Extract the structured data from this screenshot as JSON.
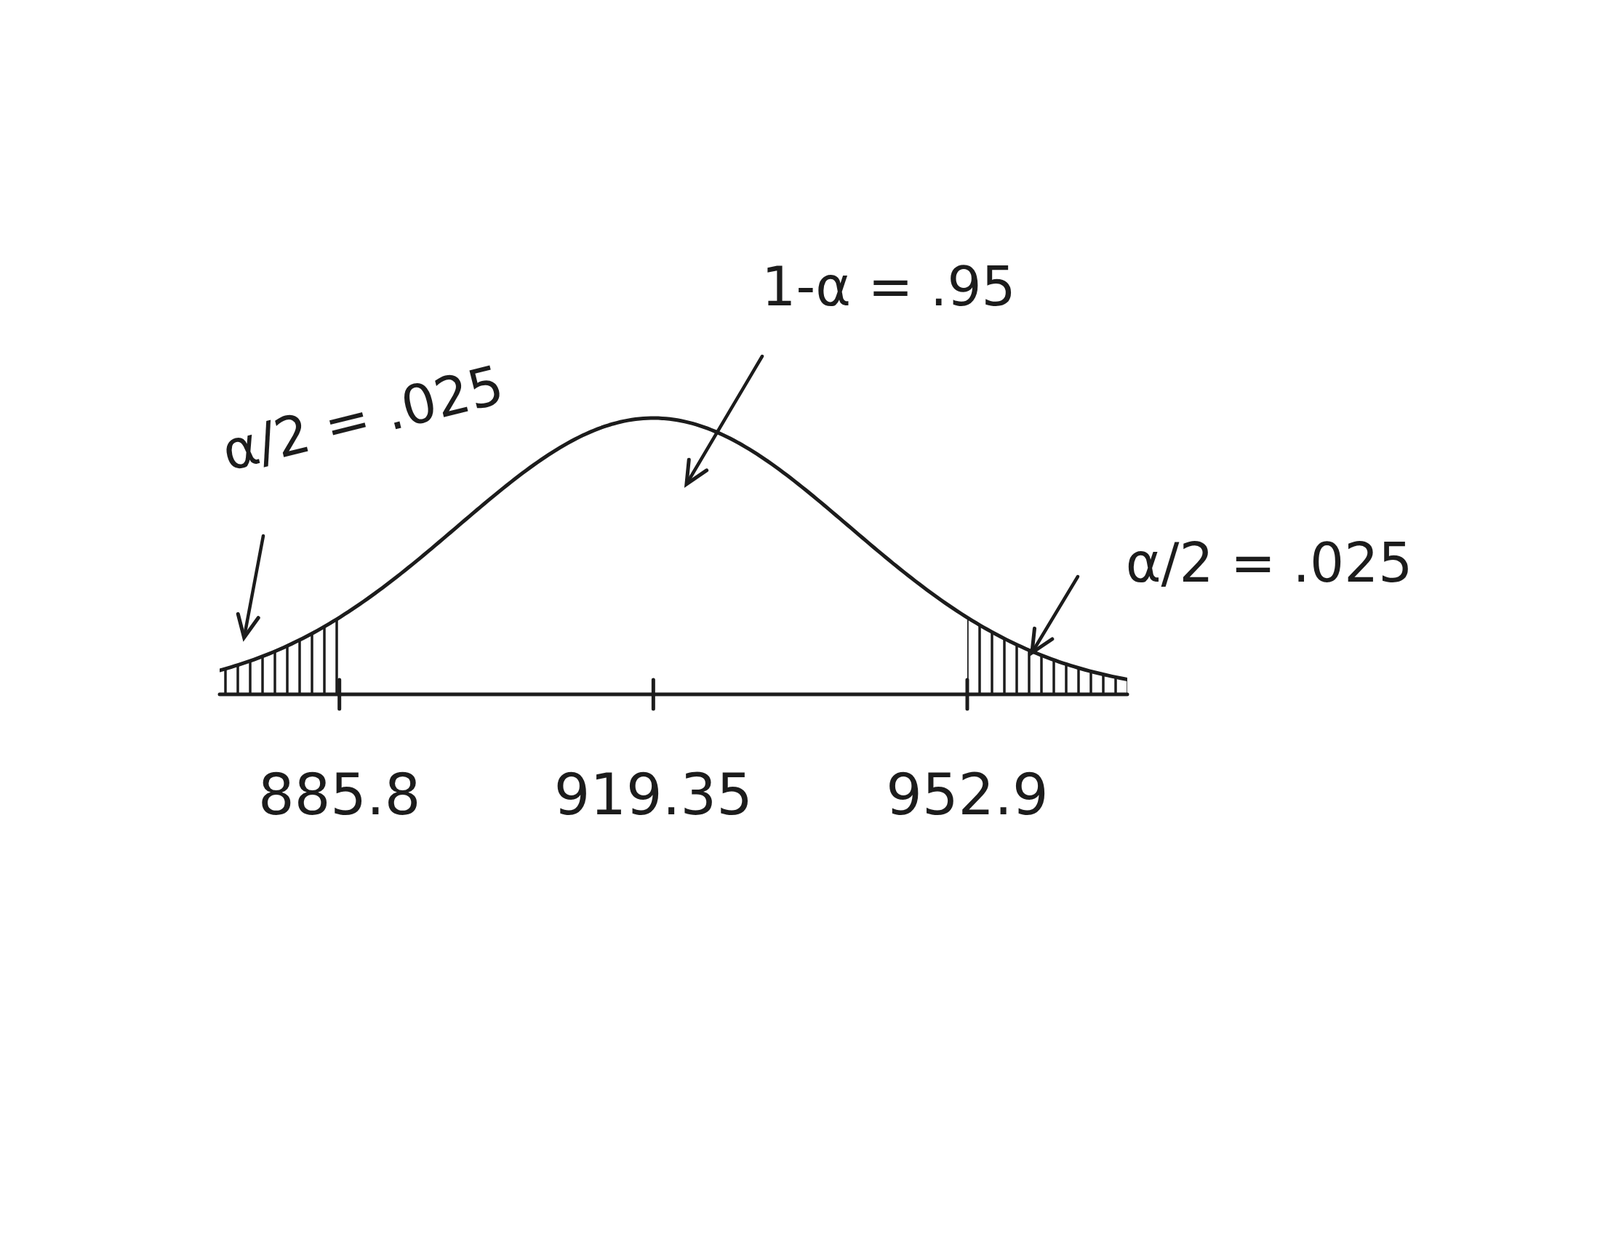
{
  "chart_data": {
    "type": "normal",
    "xlim": [
      873,
      970
    ],
    "xticks": [
      885.8,
      919.35,
      952.9
    ],
    "annotations": [
      "α/2 = .025",
      "1-α = .95",
      "α/2 = .025"
    ]
  }
}
